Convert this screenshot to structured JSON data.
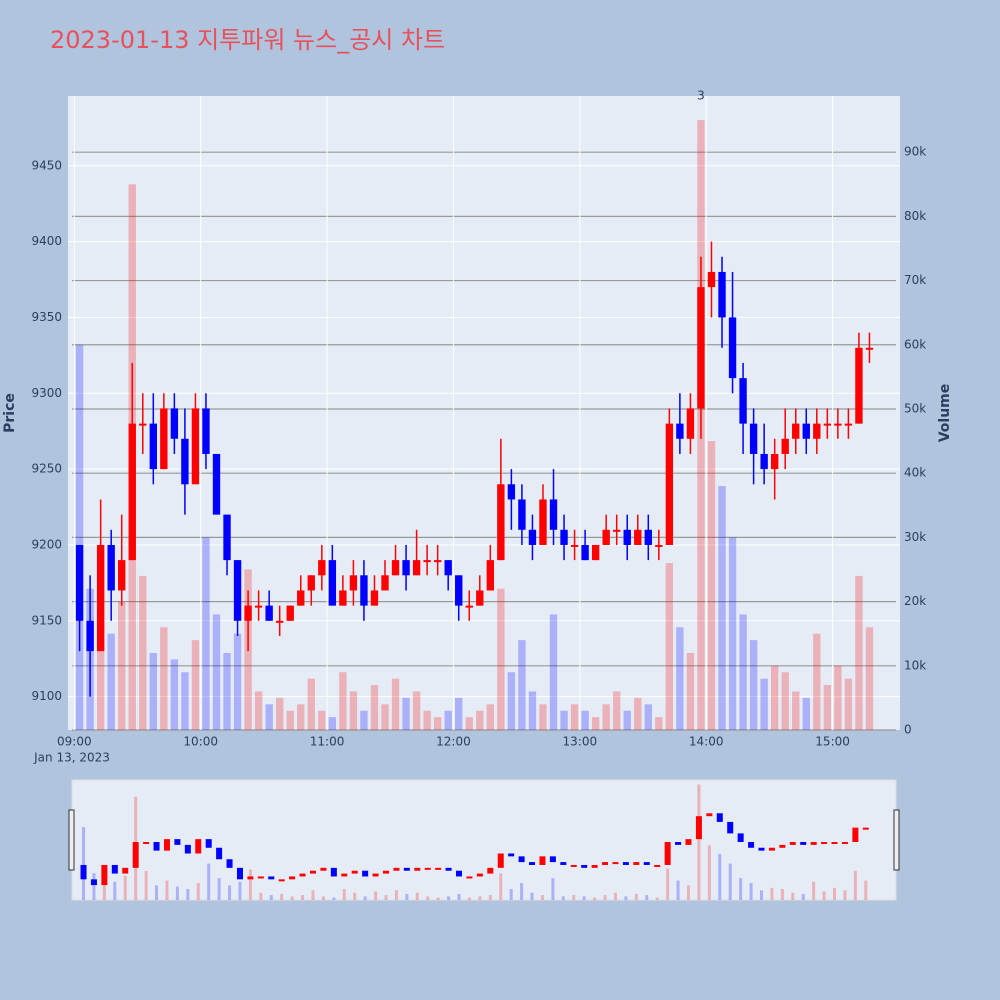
{
  "chart_data": {
    "type": "candlestick",
    "title": "2023-01-13 지투파워 뉴스_공시 차트",
    "y_title": "Price",
    "y2_title": "Volume",
    "x": [
      "09:00",
      "09:05",
      "09:10",
      "09:15",
      "09:20",
      "09:25",
      "09:30",
      "09:35",
      "09:40",
      "09:45",
      "09:50",
      "09:55",
      "10:00",
      "10:05",
      "10:10",
      "10:15",
      "10:20",
      "10:25",
      "10:30",
      "10:35",
      "10:40",
      "10:45",
      "10:50",
      "10:55",
      "11:00",
      "11:05",
      "11:10",
      "11:15",
      "11:20",
      "11:25",
      "11:30",
      "11:35",
      "11:40",
      "11:45",
      "11:50",
      "11:55",
      "12:00",
      "12:05",
      "12:10",
      "12:15",
      "12:20",
      "12:25",
      "12:30",
      "12:35",
      "12:40",
      "12:45",
      "12:50",
      "12:55",
      "13:00",
      "13:05",
      "13:10",
      "13:15",
      "13:20",
      "13:25",
      "13:30",
      "13:35",
      "13:40",
      "13:45",
      "13:50",
      "13:55",
      "14:00",
      "14:05",
      "14:10",
      "14:15",
      "14:20",
      "14:25",
      "14:30",
      "14:35",
      "14:40",
      "14:45",
      "14:50",
      "14:55",
      "15:00",
      "15:05",
      "15:10",
      "15:15"
    ],
    "open": [
      9200,
      9150,
      9130,
      9200,
      9170,
      9190,
      9280,
      9280,
      9250,
      9290,
      9270,
      9240,
      9290,
      9260,
      9220,
      9190,
      9150,
      9160,
      9160,
      9150,
      9150,
      9160,
      9170,
      9180,
      9190,
      9160,
      9170,
      9180,
      9160,
      9170,
      9180,
      9190,
      9180,
      9190,
      9190,
      9190,
      9180,
      9160,
      9160,
      9170,
      9190,
      9240,
      9230,
      9210,
      9200,
      9230,
      9210,
      9200,
      9200,
      9190,
      9200,
      9210,
      9210,
      9200,
      9210,
      9200,
      9200,
      9280,
      9270,
      9290,
      9370,
      9380,
      9350,
      9310,
      9280,
      9260,
      9250,
      9260,
      9270,
      9280,
      9270,
      9280,
      9280,
      9280,
      9280,
      9330
    ],
    "high": [
      9200,
      9180,
      9230,
      9210,
      9220,
      9320,
      9300,
      9300,
      9300,
      9300,
      9290,
      9300,
      9300,
      9260,
      9220,
      9190,
      9170,
      9170,
      9170,
      9160,
      9160,
      9180,
      9180,
      9200,
      9200,
      9180,
      9190,
      9190,
      9180,
      9190,
      9200,
      9200,
      9210,
      9200,
      9200,
      9190,
      9180,
      9170,
      9180,
      9200,
      9270,
      9250,
      9240,
      9220,
      9240,
      9250,
      9220,
      9210,
      9210,
      9200,
      9220,
      9220,
      9220,
      9220,
      9220,
      9210,
      9290,
      9300,
      9300,
      9390,
      9400,
      9390,
      9380,
      9320,
      9290,
      9280,
      9270,
      9290,
      9290,
      9290,
      9290,
      9290,
      9290,
      9290,
      9340,
      9340
    ],
    "low": [
      9130,
      9100,
      9130,
      9150,
      9160,
      9190,
      9260,
      9240,
      9250,
      9260,
      9220,
      9240,
      9250,
      9220,
      9180,
      9140,
      9130,
      9150,
      9150,
      9140,
      9150,
      9160,
      9160,
      9170,
      9160,
      9160,
      9160,
      9150,
      9160,
      9170,
      9180,
      9170,
      9180,
      9180,
      9180,
      9170,
      9150,
      9150,
      9160,
      9170,
      9190,
      9210,
      9200,
      9190,
      9200,
      9200,
      9190,
      9190,
      9190,
      9190,
      9200,
      9200,
      9190,
      9200,
      9190,
      9190,
      9200,
      9260,
      9260,
      9270,
      9350,
      9330,
      9300,
      9260,
      9240,
      9240,
      9230,
      9250,
      9260,
      9260,
      9260,
      9270,
      9270,
      9270,
      9280,
      9320
    ],
    "close": [
      9150,
      9130,
      9200,
      9170,
      9190,
      9280,
      9280,
      9250,
      9290,
      9270,
      9240,
      9290,
      9260,
      9220,
      9190,
      9150,
      9160,
      9160,
      9150,
      9150,
      9160,
      9170,
      9180,
      9190,
      9160,
      9170,
      9180,
      9160,
      9170,
      9180,
      9190,
      9180,
      9190,
      9190,
      9190,
      9180,
      9160,
      9160,
      9170,
      9190,
      9240,
      9230,
      9210,
      9200,
      9230,
      9210,
      9200,
      9200,
      9190,
      9200,
      9210,
      9210,
      9200,
      9210,
      9200,
      9200,
      9280,
      9270,
      9290,
      9370,
      9380,
      9350,
      9310,
      9280,
      9260,
      9250,
      9260,
      9270,
      9280,
      9270,
      9280,
      9280,
      9280,
      9280,
      9330,
      9330
    ],
    "volume": [
      60000,
      22000,
      28000,
      15000,
      20000,
      85000,
      24000,
      12000,
      16000,
      11000,
      9000,
      14000,
      30000,
      18000,
      12000,
      15000,
      25000,
      6000,
      4000,
      5000,
      3000,
      4000,
      8000,
      3000,
      2000,
      9000,
      6000,
      3000,
      7000,
      4000,
      8000,
      5000,
      6000,
      3000,
      2000,
      3000,
      5000,
      2000,
      3000,
      4000,
      22000,
      9000,
      14000,
      6000,
      4000,
      18000,
      3000,
      4000,
      3000,
      2000,
      4000,
      6000,
      3000,
      5000,
      4000,
      2000,
      26000,
      16000,
      12000,
      95000,
      45000,
      38000,
      30000,
      18000,
      14000,
      8000,
      10000,
      9000,
      6000,
      5000,
      15000,
      7000,
      10000,
      8000,
      24000,
      16000
    ],
    "up_color": "#ff0000",
    "down_color": "#0000ff",
    "xlim": [
      "08:57",
      "15:32"
    ],
    "xticks": [
      "09:00",
      "10:00",
      "11:00",
      "12:00",
      "13:00",
      "14:00",
      "15:00"
    ],
    "x_sublabel": "Jan 13, 2023",
    "ylim": [
      9078,
      9496
    ],
    "yticks": [
      9100,
      9150,
      9200,
      9250,
      9300,
      9350,
      9400,
      9450
    ],
    "y2lim": [
      0,
      98750
    ],
    "y2ticks": [
      0,
      {
        "value": 10000,
        "label": "10k"
      },
      {
        "value": 20000,
        "label": "20k"
      },
      {
        "value": 30000,
        "label": "30k"
      },
      {
        "value": 40000,
        "label": "40k"
      },
      {
        "value": 50000,
        "label": "50k"
      },
      {
        "value": 60000,
        "label": "60k"
      },
      {
        "value": 70000,
        "label": "70k"
      },
      {
        "value": 80000,
        "label": "80k"
      },
      {
        "value": 90000,
        "label": "90k"
      }
    ],
    "annotation": {
      "text": "3",
      "x": "13:55"
    },
    "range_slider": true
  }
}
